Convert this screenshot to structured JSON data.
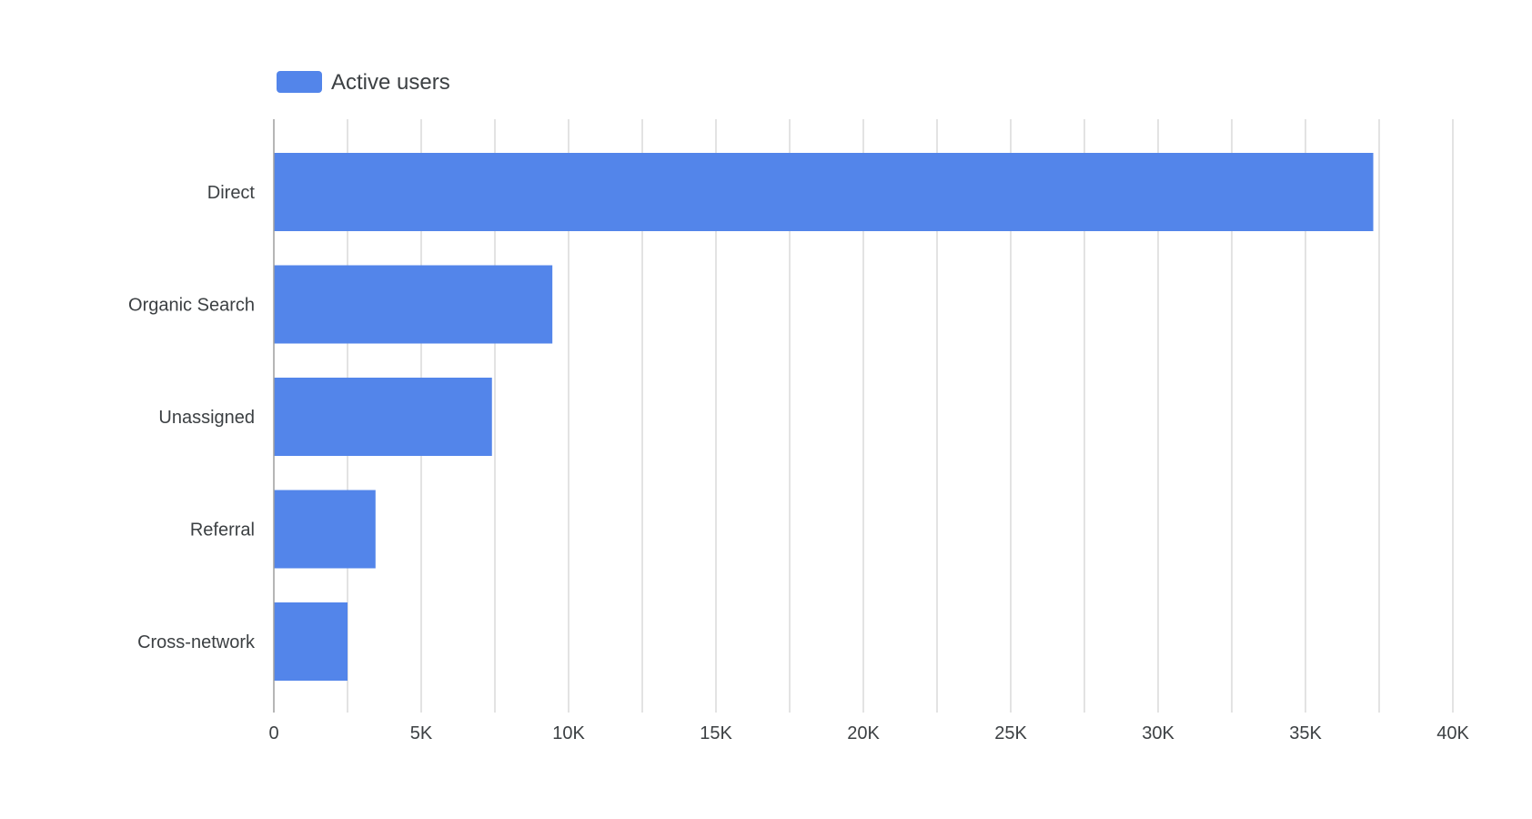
{
  "chart_data": {
    "type": "bar",
    "orientation": "horizontal",
    "categories": [
      "Direct",
      "Organic Search",
      "Unassigned",
      "Referral",
      "Cross-network"
    ],
    "series": [
      {
        "name": "Active users",
        "values": [
          37300,
          9450,
          7400,
          3450,
          2500
        ],
        "color": "#5385ea"
      }
    ],
    "xlim": [
      0,
      40000
    ],
    "x_ticks": [
      0,
      5000,
      10000,
      15000,
      20000,
      25000,
      30000,
      35000,
      40000
    ],
    "x_tick_labels": [
      "0",
      "5K",
      "10K",
      "15K",
      "20K",
      "25K",
      "30K",
      "35K",
      "40K"
    ],
    "minor_grid_step": 2500,
    "grid": true,
    "legend": {
      "position": "top-left",
      "label": "Active users"
    },
    "title": "",
    "xlabel": "",
    "ylabel": ""
  }
}
